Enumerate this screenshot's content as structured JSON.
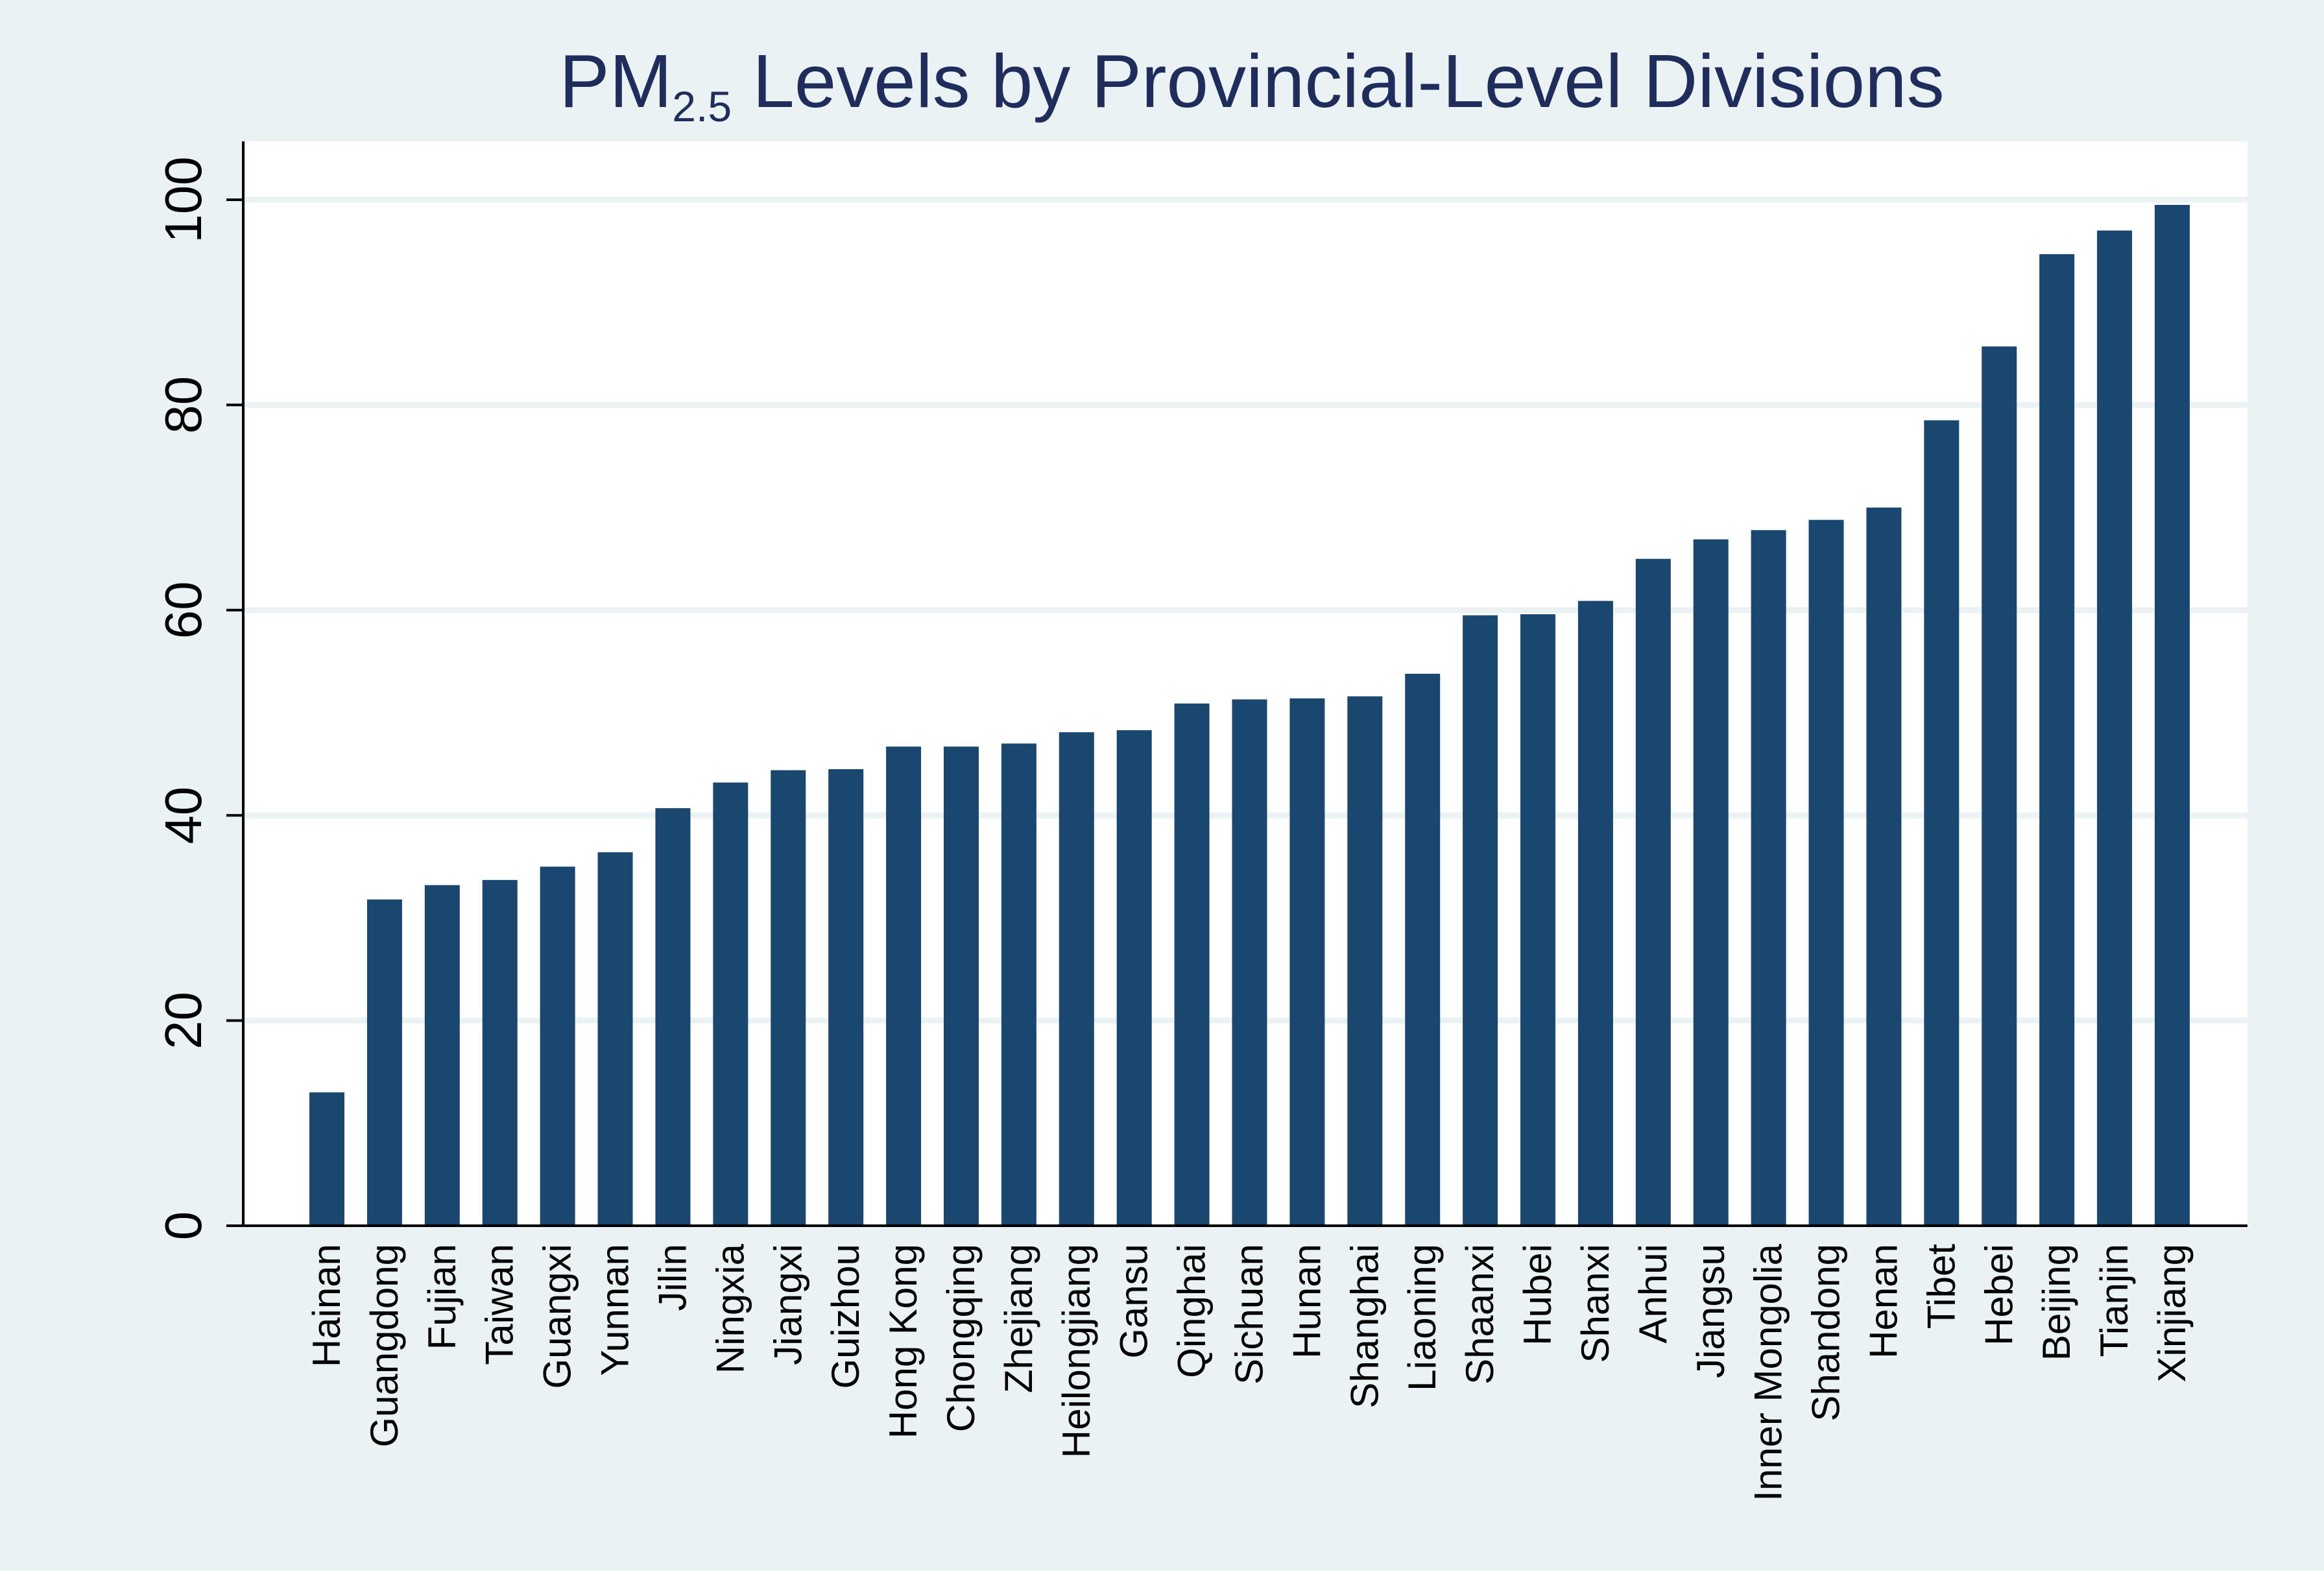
{
  "chart_data": {
    "type": "bar",
    "title": {
      "main": "PM",
      "subscript": "2.5",
      "rest": " Levels by Provincial-Level Divisions"
    },
    "xlabel": "",
    "ylabel": "",
    "ylim": [
      0,
      100
    ],
    "yticks": [
      0,
      20,
      40,
      60,
      80,
      100
    ],
    "ytick_labels": [
      "0",
      "20",
      "40",
      "60",
      "80",
      "100"
    ],
    "grid": true,
    "legend": "none",
    "categories": [
      "Hainan",
      "Guangdong",
      "Fujian",
      "Taiwan",
      "Guangxi",
      "Yunnan",
      "Jilin",
      "Ningxia",
      "Jiangxi",
      "Guizhou",
      "Hong Kong",
      "Chongqing",
      "Zhejiang",
      "Heilongjiang",
      "Gansu",
      "Qinghai",
      "Sichuan",
      "Hunan",
      "Shanghai",
      "Liaoning",
      "Shaanxi",
      "Hubei",
      "Shanxi",
      "Anhui",
      "Jiangsu",
      "Inner Mongolia",
      "Shandong",
      "Henan",
      "Tibet",
      "Hebei",
      "Beijing",
      "Tianjin",
      "Xinjiang"
    ],
    "values": [
      13,
      31.8,
      33.2,
      33.7,
      35,
      36.4,
      40.7,
      43.2,
      44.4,
      44.5,
      46.7,
      46.7,
      47,
      48.1,
      48.3,
      50.9,
      51.3,
      51.4,
      51.6,
      53.8,
      59.5,
      59.6,
      60.9,
      65,
      66.9,
      67.8,
      68.8,
      70,
      78.5,
      85.7,
      94.7,
      97,
      99.5
    ],
    "colors": {
      "outer_background": "#eaf2f3",
      "plot_background": "#ffffff",
      "bar": "#1a476f",
      "grid": "#eaf2f3",
      "axis": "#000000",
      "title": "#1e2d5c"
    }
  }
}
